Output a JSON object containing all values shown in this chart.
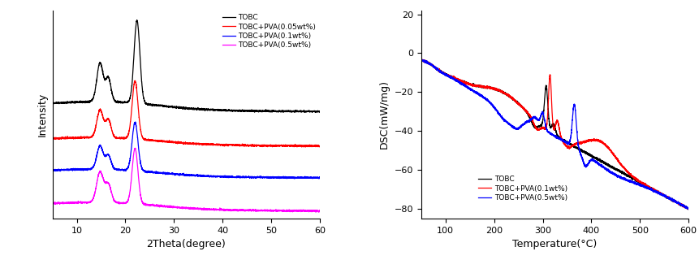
{
  "xrd": {
    "xlim": [
      5,
      60
    ],
    "xlabel": "2Theta(degree)",
    "ylabel": "Intensity",
    "legend": [
      "TOBC",
      "TOBC+PVA(0.05wt%)",
      "TOBC+PVA(0.1wt%)",
      "TOBC+PVA(0.5wt%)"
    ],
    "colors": [
      "black",
      "red",
      "blue",
      "magenta"
    ],
    "xticks": [
      10,
      20,
      30,
      40,
      50,
      60
    ]
  },
  "dsc": {
    "xlim": [
      50,
      600
    ],
    "ylim": [
      -85,
      22
    ],
    "xlabel": "Temperature(°C)",
    "ylabel": "DSC(mW/mg)",
    "yticks": [
      20,
      0,
      -20,
      -40,
      -60,
      -80
    ],
    "xticks": [
      100,
      200,
      300,
      400,
      500,
      600
    ],
    "legend": [
      "TOBC",
      "TOBC+PVA(0.1wt%)",
      "TOBC+PVA(0.5wt%)"
    ],
    "colors": [
      "black",
      "red",
      "blue"
    ]
  }
}
